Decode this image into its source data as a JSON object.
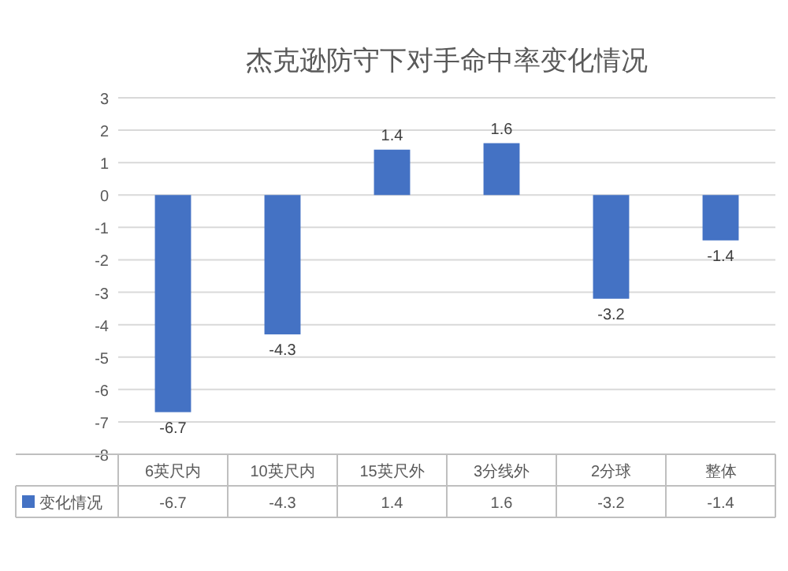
{
  "chart_data": {
    "type": "bar",
    "title": "杰克逊防守下对手命中率变化情况",
    "categories": [
      "6英尺内",
      "10英尺内",
      "15英尺外",
      "3分线外",
      "2分球",
      "整体"
    ],
    "series": [
      {
        "name": "变化情况",
        "color": "#4472c4",
        "values": [
          -6.7,
          -4.3,
          1.4,
          1.6,
          -3.2,
          -1.4
        ],
        "value_labels": [
          "-6.7",
          "-4.3",
          "1.4",
          "1.6",
          "-3.2",
          "-1.4"
        ]
      }
    ],
    "ylim": [
      -8,
      3
    ],
    "yticks": [
      -8,
      -7,
      -6,
      -5,
      -4,
      -3,
      -2,
      -1,
      0,
      1,
      2,
      3
    ],
    "grid": "y",
    "legend": "bottom",
    "annotations": [
      "-6.7",
      "-4.3",
      "1.4",
      "1.6",
      "-3.2",
      "-1.4"
    ]
  }
}
